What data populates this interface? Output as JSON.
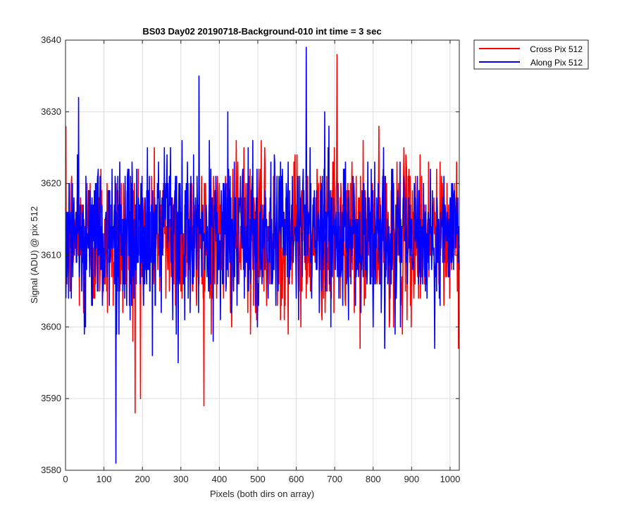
{
  "chart_data": {
    "type": "line",
    "title": "BS03 Day02 20190718-Background-010 int time = 3 sec",
    "xlabel": "Pixels (both dirs on array)",
    "ylabel": "Signal (ADU) @ pix 512",
    "xlim": [
      0,
      1024
    ],
    "ylim": [
      3580,
      3640
    ],
    "xticks": [
      0,
      100,
      200,
      300,
      400,
      500,
      600,
      700,
      800,
      900,
      1000
    ],
    "yticks": [
      3580,
      3590,
      3600,
      3610,
      3620,
      3630,
      3640
    ],
    "grid": true,
    "legend_position": "outside-top-right",
    "series": [
      {
        "name": "Cross Pix 512",
        "color": "#ff0000",
        "mean": 3612.5,
        "stdev": 5.5,
        "max_point": {
          "x": 705,
          "y": 3638
        },
        "min_point": {
          "x": 180,
          "y": 3588
        }
      },
      {
        "name": "Along Pix 512",
        "color": "#0000ff",
        "mean": 3612.5,
        "stdev": 5.5,
        "max_point": {
          "x": 625,
          "y": 3639
        },
        "min_point": {
          "x": 130,
          "y": 3581
        }
      }
    ]
  }
}
